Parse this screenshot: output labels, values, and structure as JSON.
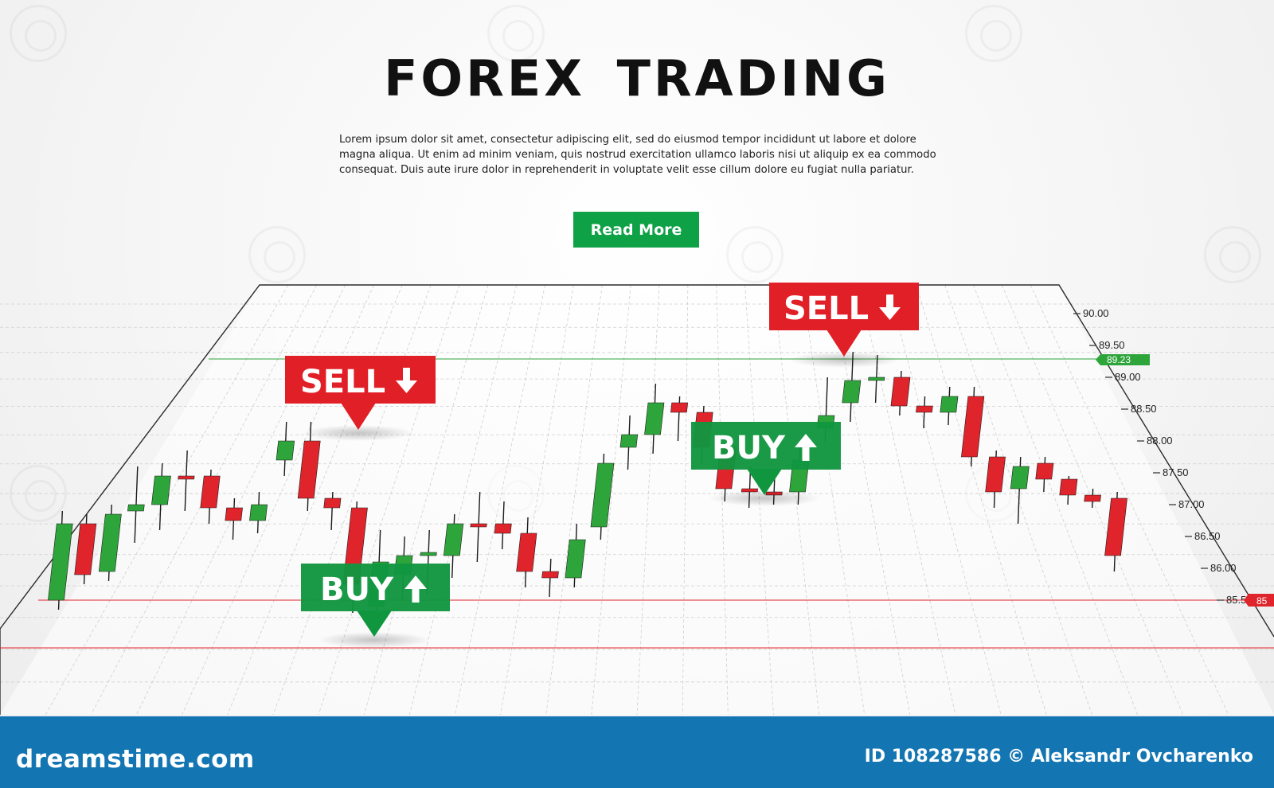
{
  "hero": {
    "title": "FOREX  TRADING",
    "body_lines": [
      "Lorem ipsum dolor sit amet, consectetur adipiscing elit, sed do eiusmod tempor incididunt ut labore et dolore",
      "magna aliqua. Ut enim ad minim veniam, quis nostrud exercitation ullamco laboris nisi ut aliquip ex ea commodo",
      "consequat. Duis aute irure dolor in reprehenderit in voluptate velit esse cillum dolore eu fugiat nulla pariatur."
    ],
    "button_label": "Read More"
  },
  "signals": {
    "sell_1": "SELL",
    "sell_2": "SELL",
    "buy_1": "BUY",
    "buy_2": "BUY"
  },
  "price_axis": {
    "labels": [
      "90.00",
      "89.50",
      "89.00",
      "88.50",
      "88.00",
      "87.50",
      "87.00",
      "86.50",
      "86.00",
      "85.50"
    ],
    "current_tag": "89.23",
    "low_tag": "85"
  },
  "footer": {
    "logo": "dreamstime.com",
    "credit": "ID 108287586 © Aleksandr Ovcharenko"
  },
  "colors": {
    "up": "#2ea53b",
    "down": "#e0242b",
    "buy_badge": "#119640",
    "sell_badge": "#e11f26",
    "button": "#0ea146",
    "footer": "#1376b3"
  },
  "chart_data": {
    "type": "candlestick",
    "ylabel": "",
    "ylim": [
      85.5,
      90.0
    ],
    "series": [
      {
        "values": [
          {
            "o": 85.5,
            "c": 86.7,
            "h": 86.9,
            "l": 85.35
          },
          {
            "o": 86.7,
            "c": 85.9,
            "h": 86.85,
            "l": 85.75
          },
          {
            "o": 85.95,
            "c": 86.85,
            "h": 87.0,
            "l": 85.8
          },
          {
            "o": 86.9,
            "c": 87.0,
            "h": 87.6,
            "l": 86.4
          },
          {
            "o": 87.0,
            "c": 87.45,
            "h": 87.65,
            "l": 86.6
          },
          {
            "o": 87.45,
            "c": 87.4,
            "h": 87.85,
            "l": 86.9
          },
          {
            "o": 87.45,
            "c": 86.95,
            "h": 87.55,
            "l": 86.7
          },
          {
            "o": 86.95,
            "c": 86.75,
            "h": 87.1,
            "l": 86.45
          },
          {
            "o": 86.75,
            "c": 87.0,
            "h": 87.2,
            "l": 86.55
          },
          {
            "o": 87.7,
            "c": 88.0,
            "h": 88.3,
            "l": 87.45
          },
          {
            "o": 88.0,
            "c": 87.1,
            "h": 88.3,
            "l": 86.9
          },
          {
            "o": 87.1,
            "c": 86.95,
            "h": 87.2,
            "l": 86.6
          },
          {
            "o": 86.95,
            "c": 85.75,
            "h": 87.05,
            "l": 85.3
          },
          {
            "o": 85.4,
            "c": 86.1,
            "h": 86.6,
            "l": 85.3
          },
          {
            "o": 85.9,
            "c": 86.2,
            "h": 86.5,
            "l": 85.5
          },
          {
            "o": 86.2,
            "c": 86.25,
            "h": 86.6,
            "l": 85.6
          },
          {
            "o": 86.2,
            "c": 86.7,
            "h": 86.85,
            "l": 85.85
          },
          {
            "o": 86.7,
            "c": 86.65,
            "h": 87.2,
            "l": 86.1
          },
          {
            "o": 86.7,
            "c": 86.55,
            "h": 87.05,
            "l": 86.3
          },
          {
            "o": 86.55,
            "c": 85.95,
            "h": 86.8,
            "l": 85.7
          },
          {
            "o": 85.95,
            "c": 85.85,
            "h": 86.15,
            "l": 85.55
          },
          {
            "o": 85.85,
            "c": 86.45,
            "h": 86.7,
            "l": 85.7
          },
          {
            "o": 86.65,
            "c": 87.65,
            "h": 87.8,
            "l": 86.45
          },
          {
            "o": 87.9,
            "c": 88.1,
            "h": 88.4,
            "l": 87.55
          },
          {
            "o": 88.1,
            "c": 88.6,
            "h": 88.9,
            "l": 87.8
          },
          {
            "o": 88.6,
            "c": 88.45,
            "h": 88.7,
            "l": 88.0
          },
          {
            "o": 88.45,
            "c": 87.9,
            "h": 88.55,
            "l": 87.65
          },
          {
            "o": 87.9,
            "c": 87.25,
            "h": 88.05,
            "l": 87.05
          },
          {
            "o": 87.25,
            "c": 87.2,
            "h": 87.6,
            "l": 86.95
          },
          {
            "o": 87.2,
            "c": 87.15,
            "h": 87.5,
            "l": 87.0
          },
          {
            "o": 87.2,
            "c": 87.7,
            "h": 87.9,
            "l": 87.0
          },
          {
            "o": 88.2,
            "c": 88.4,
            "h": 89.0,
            "l": 88.0
          },
          {
            "o": 88.6,
            "c": 88.95,
            "h": 89.4,
            "l": 88.3
          },
          {
            "o": 88.95,
            "c": 89.0,
            "h": 89.35,
            "l": 88.6
          },
          {
            "o": 89.0,
            "c": 88.55,
            "h": 89.1,
            "l": 88.4
          },
          {
            "o": 88.55,
            "c": 88.45,
            "h": 88.7,
            "l": 88.2
          },
          {
            "o": 88.45,
            "c": 88.7,
            "h": 88.85,
            "l": 88.25
          },
          {
            "o": 88.7,
            "c": 87.75,
            "h": 88.85,
            "l": 87.6
          },
          {
            "o": 87.75,
            "c": 87.2,
            "h": 87.85,
            "l": 86.95
          },
          {
            "o": 87.25,
            "c": 87.6,
            "h": 87.75,
            "l": 86.7
          },
          {
            "o": 87.65,
            "c": 87.4,
            "h": 87.75,
            "l": 87.2
          },
          {
            "o": 87.4,
            "c": 87.15,
            "h": 87.45,
            "l": 87.0
          },
          {
            "o": 87.15,
            "c": 87.05,
            "h": 87.25,
            "l": 86.95
          },
          {
            "o": 87.1,
            "c": 86.2,
            "h": 87.2,
            "l": 85.95
          }
        ]
      }
    ],
    "horizontal_lines": [
      89.23,
      85.5
    ]
  }
}
